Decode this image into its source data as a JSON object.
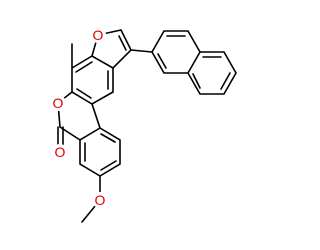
{
  "atom_labels": [
    "O",
    "O",
    "O",
    "O"
  ]
}
